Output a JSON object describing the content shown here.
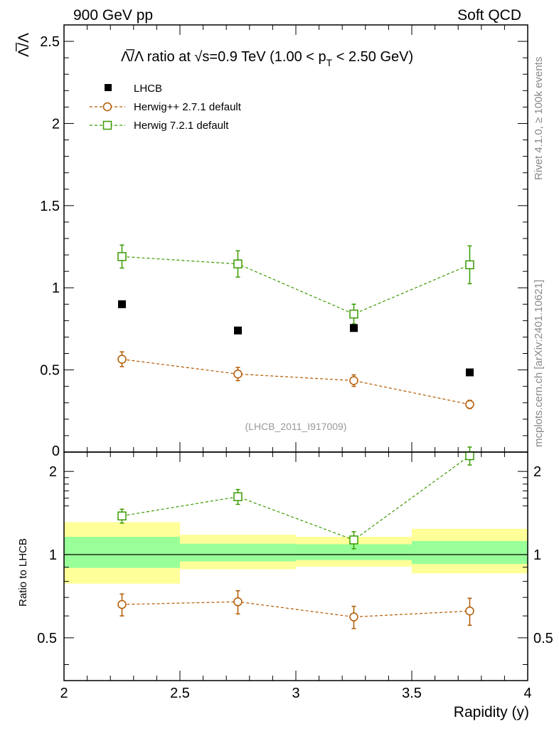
{
  "header": {
    "left": "900 GeV pp",
    "right": "Soft QCD"
  },
  "side": {
    "top": "Rivet 4.1.0, ≥ 100k events",
    "bottom": "mcplots.cern.ch [arXiv:2401.10621]"
  },
  "watermark": "(LHCB_2011_I917009)",
  "colors": {
    "data": "#000000",
    "herwigpp": "#b35900",
    "herwig7": "#3a9a00",
    "band_inner": "#99ff99",
    "band_outer": "#ffff99"
  },
  "chart_data": [
    {
      "type": "scatter",
      "title": "Λ̅/Λ ratio at √s=0.9 TeV (1.00 < pT < 2.50 GeV)",
      "title_parts": {
        "main": "Λ̅/Λ ratio at √s=0.9 TeV (1.00 < p",
        "sub": "T",
        "tail": " < 2.50 GeV)"
      },
      "ylabel": "Λ̅/Λ",
      "xlim": [
        2,
        4
      ],
      "ylim": [
        0,
        2.6
      ],
      "yticks": [
        0.5,
        1,
        1.5,
        2,
        2.5
      ],
      "ytick_labels": [
        "0.5",
        "1",
        "1.5",
        "2",
        "2.5"
      ],
      "y_zero_label": "0",
      "legend": [
        "LHCB",
        "Herwig++ 2.7.1 default",
        "Herwig 7.2.1 default"
      ],
      "series": [
        {
          "name": "LHCB",
          "x": [
            2.25,
            2.75,
            3.25,
            3.75
          ],
          "y": [
            0.9,
            0.74,
            0.755,
            0.485
          ],
          "err": [
            0.005,
            0.005,
            0.005,
            0.005
          ]
        },
        {
          "name": "Herwig++ 2.7.1 default",
          "x": [
            2.25,
            2.75,
            3.25,
            3.75
          ],
          "y": [
            0.565,
            0.475,
            0.435,
            0.29
          ],
          "err": [
            0.045,
            0.04,
            0.035,
            0.025
          ]
        },
        {
          "name": "Herwig 7.2.1 default",
          "x": [
            2.25,
            2.75,
            3.25,
            3.75
          ],
          "y": [
            1.19,
            1.145,
            0.84,
            1.14
          ],
          "err": [
            0.07,
            0.08,
            0.06,
            0.115
          ]
        }
      ]
    },
    {
      "type": "scatter",
      "ylabel": "Ratio to LHCB",
      "xlabel": "Rapidity (y)",
      "xlim": [
        2,
        4
      ],
      "ylim": [
        0.35,
        2.35
      ],
      "y_scale": "log",
      "xticks": [
        2,
        2.5,
        3,
        3.5,
        4
      ],
      "xtick_labels": [
        "2",
        "2.5",
        "3",
        "3.5",
        "4"
      ],
      "yticks": [
        0.5,
        1,
        2
      ],
      "ytick_labels": [
        "0.5",
        "1",
        "2"
      ],
      "bands": [
        {
          "x0": 2.0,
          "x1": 2.5,
          "inner": [
            0.895,
            1.16
          ],
          "outer": [
            0.785,
            1.31
          ]
        },
        {
          "x0": 2.5,
          "x1": 3.0,
          "inner": [
            0.945,
            1.095
          ],
          "outer": [
            0.885,
            1.18
          ]
        },
        {
          "x0": 3.0,
          "x1": 3.5,
          "inner": [
            0.955,
            1.09
          ],
          "outer": [
            0.905,
            1.16
          ]
        },
        {
          "x0": 3.5,
          "x1": 4.0,
          "inner": [
            0.925,
            1.12
          ],
          "outer": [
            0.855,
            1.24
          ]
        }
      ],
      "series": [
        {
          "name": "Herwig++ 2.7.1 default",
          "x": [
            2.25,
            2.75,
            3.25,
            3.75
          ],
          "y": [
            0.66,
            0.675,
            0.595,
            0.625
          ],
          "err": [
            0.06,
            0.065,
            0.055,
            0.07
          ]
        },
        {
          "name": "Herwig 7.2.1 default",
          "x": [
            2.25,
            2.75,
            3.25,
            3.75
          ],
          "y": [
            1.38,
            1.62,
            1.13,
            2.28
          ],
          "err": [
            0.08,
            0.1,
            0.08,
            0.17
          ]
        }
      ]
    }
  ]
}
